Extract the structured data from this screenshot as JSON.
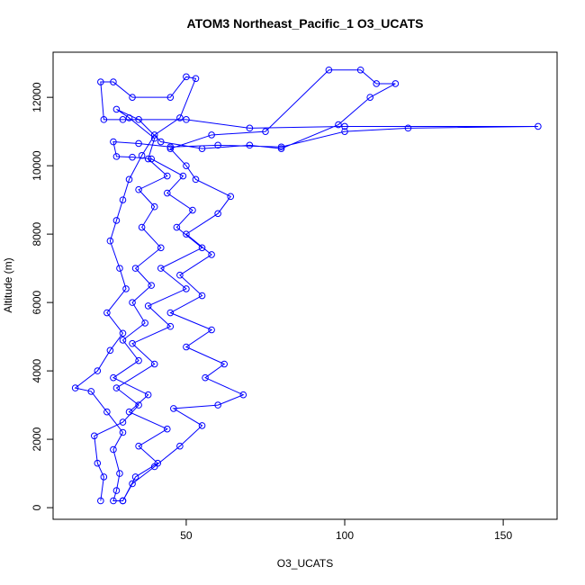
{
  "chart_data": {
    "type": "line",
    "title": "ATOM3 Northeast_Pacific_1 O3_UCATS",
    "x_label": "O3_UCATS",
    "y_label": "Altitude (m)",
    "xlim": [
      8,
      167
    ],
    "ylim": [
      -340,
      13320
    ],
    "xticks": [
      50,
      100,
      150
    ],
    "yticks": [
      0,
      2000,
      4000,
      6000,
      8000,
      10000,
      12000
    ],
    "series": [
      {
        "color": "#0000ff",
        "x": [
          23,
          24,
          22,
          21,
          30,
          35,
          28,
          40,
          33,
          45,
          38,
          50,
          42,
          55,
          47,
          52,
          44,
          49,
          39,
          33,
          28,
          27,
          35,
          45,
          60,
          80,
          100,
          120,
          161,
          100,
          70,
          50,
          30,
          24,
          23,
          27,
          33,
          45,
          50,
          53,
          48,
          40,
          36,
          32,
          30,
          28,
          26,
          29,
          31,
          25,
          30,
          26,
          22,
          15,
          20,
          25,
          30,
          27,
          29,
          28,
          27,
          30,
          33,
          40,
          48,
          55,
          46,
          60,
          68,
          56,
          62,
          50,
          58,
          45,
          55,
          48,
          58,
          50,
          60,
          64,
          53,
          50,
          45,
          58,
          75,
          95,
          105,
          110,
          116,
          108,
          98,
          80,
          70,
          55,
          42,
          35,
          28,
          32,
          40,
          38,
          44,
          35,
          40,
          36,
          42,
          34,
          39,
          33,
          37,
          30,
          35,
          27,
          38,
          32,
          44,
          35,
          41,
          34,
          30
        ],
        "values": [
          200,
          900,
          1300,
          2100,
          2500,
          3000,
          3500,
          4200,
          4800,
          5300,
          5900,
          6400,
          7000,
          7600,
          8200,
          8700,
          9200,
          9700,
          10200,
          10250,
          10270,
          10700,
          10650,
          10550,
          10600,
          10550,
          11000,
          11100,
          11150,
          11150,
          11100,
          11350,
          11350,
          11350,
          12450,
          12450,
          12000,
          12000,
          12600,
          12550,
          11400,
          10900,
          10300,
          9600,
          9000,
          8400,
          7800,
          7000,
          6400,
          5700,
          5100,
          4600,
          4000,
          3500,
          3400,
          2800,
          2200,
          1700,
          1000,
          500,
          200,
          200,
          700,
          1200,
          1800,
          2400,
          2900,
          3000,
          3300,
          3800,
          4200,
          4700,
          5200,
          5700,
          6200,
          6800,
          7400,
          8000,
          8600,
          9100,
          9600,
          10000,
          10500,
          10900,
          11000,
          12800,
          12800,
          12400,
          12400,
          12000,
          11200,
          10500,
          10600,
          10500,
          10700,
          11350,
          11650,
          11400,
          10800,
          10200,
          9700,
          9300,
          8800,
          8200,
          7600,
          7000,
          6500,
          6000,
          5400,
          4900,
          4300,
          3800,
          3300,
          2800,
          2300,
          1800,
          1300,
          900,
          200
        ]
      }
    ]
  }
}
